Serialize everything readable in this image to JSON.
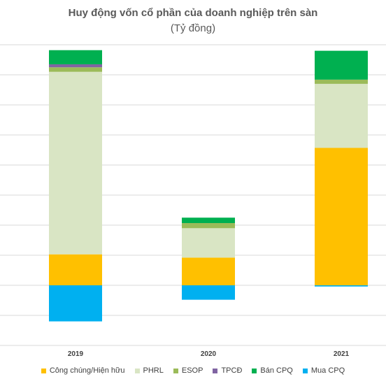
{
  "chart_data": {
    "type": "bar",
    "stacked": true,
    "title": "Huy động vốn cổ phần của doanh nghiệp trên sàn",
    "subtitle": "(Tỷ đồng)",
    "categories": [
      "2019",
      "2020",
      "2021"
    ],
    "ylim": [
      -20000,
      80000
    ],
    "grid": true,
    "legend_position": "bottom",
    "series": [
      {
        "name": "Công chúng/Hiện hữu",
        "color": "#FFC000",
        "values": [
          10300,
          9200,
          45700
        ]
      },
      {
        "name": "PHRL",
        "color": "#D9E5C4",
        "values": [
          60700,
          9800,
          21300
        ]
      },
      {
        "name": "ESOP",
        "color": "#9BBB59",
        "values": [
          1500,
          1700,
          1400
        ]
      },
      {
        "name": "TPCĐ",
        "color": "#8064A2",
        "values": [
          1000,
          0,
          0
        ]
      },
      {
        "name": "Bán CPQ",
        "color": "#00B050",
        "values": [
          4700,
          1800,
          9600
        ]
      },
      {
        "name": "Mua CPQ",
        "color": "#00B0F0",
        "values": [
          -12000,
          -4800,
          -400
        ]
      }
    ]
  }
}
